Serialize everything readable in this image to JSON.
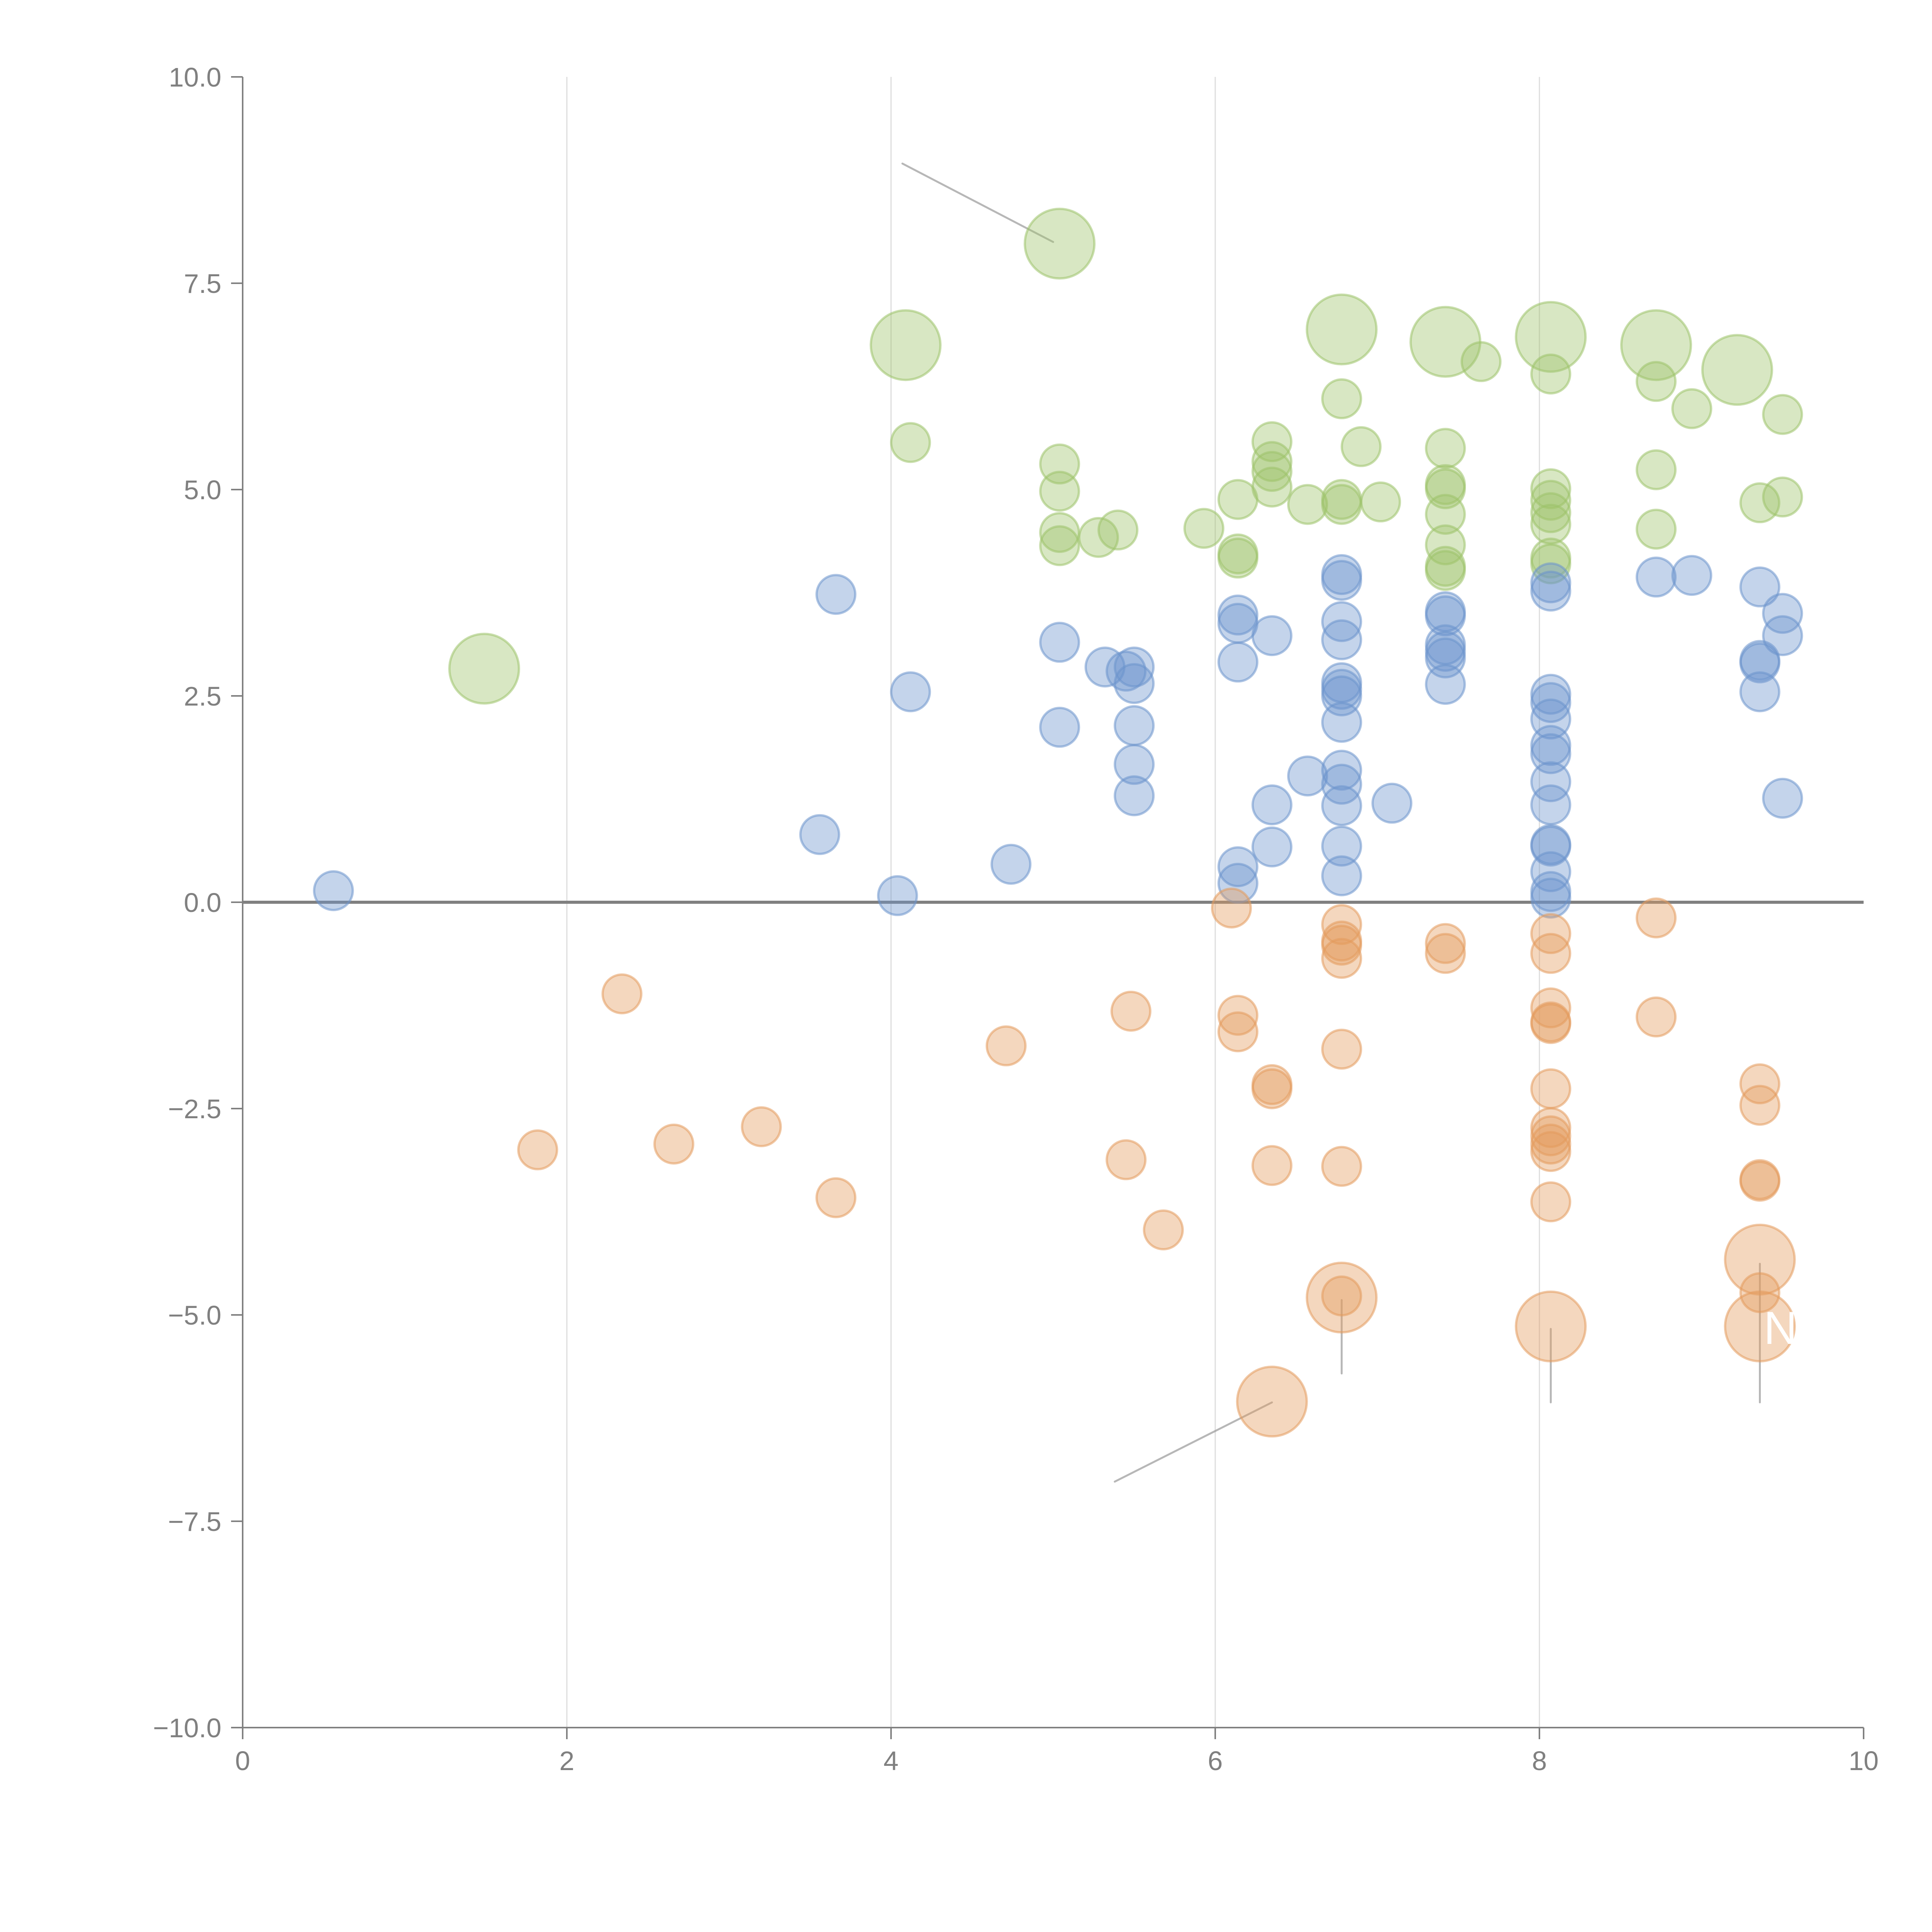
{
  "chart_data": {
    "type": "scatter",
    "subtype": "bubble",
    "title": "",
    "xlabel": "",
    "ylabel": "",
    "xlim": [
      0,
      10
    ],
    "ylim": [
      -10,
      10
    ],
    "x_ticks": [
      0,
      2,
      4,
      6,
      8,
      10
    ],
    "x_tick_labels": [
      "0",
      "2",
      "4",
      "6",
      "8",
      "10"
    ],
    "y_ticks": [
      10,
      7.5,
      5,
      2.5,
      0,
      -2.5,
      -5,
      -7.5,
      -10
    ],
    "y_tick_labels": [
      "10.0",
      "7.5",
      "5.0",
      "2.5",
      "0.0",
      "−2.5",
      "−5.0",
      "−7.5",
      "−10.0"
    ],
    "grid": "vertical",
    "zero_line": true,
    "legend": "none",
    "series": [
      {
        "name": "green",
        "color": "#9dc26a",
        "points": [
          {
            "x": 4.12,
            "y": 5.57,
            "s": 1
          },
          {
            "x": 5.04,
            "y": 5.31,
            "s": 1
          },
          {
            "x": 5.04,
            "y": 4.98,
            "s": 1
          },
          {
            "x": 5.04,
            "y": 4.48,
            "s": 1
          },
          {
            "x": 5.04,
            "y": 4.32,
            "s": 1
          },
          {
            "x": 5.28,
            "y": 4.42,
            "s": 1
          },
          {
            "x": 5.4,
            "y": 4.51,
            "s": 1
          },
          {
            "x": 5.93,
            "y": 4.53,
            "s": 1
          },
          {
            "x": 6.14,
            "y": 4.88,
            "s": 1
          },
          {
            "x": 6.14,
            "y": 4.22,
            "s": 1
          },
          {
            "x": 6.14,
            "y": 4.17,
            "s": 1
          },
          {
            "x": 6.35,
            "y": 5.58,
            "s": 1
          },
          {
            "x": 6.35,
            "y": 5.34,
            "s": 1
          },
          {
            "x": 6.35,
            "y": 5.22,
            "s": 1
          },
          {
            "x": 6.35,
            "y": 5.03,
            "s": 1
          },
          {
            "x": 6.57,
            "y": 4.82,
            "s": 1
          },
          {
            "x": 6.78,
            "y": 6.1,
            "s": 1
          },
          {
            "x": 6.78,
            "y": 4.88,
            "s": 1
          },
          {
            "x": 6.78,
            "y": 4.82,
            "s": 1
          },
          {
            "x": 6.9,
            "y": 5.52,
            "s": 1
          },
          {
            "x": 7.02,
            "y": 4.85,
            "s": 1
          },
          {
            "x": 7.42,
            "y": 5.5,
            "s": 1
          },
          {
            "x": 7.42,
            "y": 5.06,
            "s": 1
          },
          {
            "x": 7.42,
            "y": 5.01,
            "s": 1
          },
          {
            "x": 7.42,
            "y": 4.7,
            "s": 1
          },
          {
            "x": 7.42,
            "y": 4.33,
            "s": 1
          },
          {
            "x": 7.42,
            "y": 4.07,
            "s": 1
          },
          {
            "x": 7.42,
            "y": 4.02,
            "s": 1
          },
          {
            "x": 7.64,
            "y": 6.55,
            "s": 1
          },
          {
            "x": 8.07,
            "y": 6.4,
            "s": 1
          },
          {
            "x": 8.07,
            "y": 5.01,
            "s": 1
          },
          {
            "x": 8.07,
            "y": 4.87,
            "s": 1
          },
          {
            "x": 8.07,
            "y": 4.72,
            "s": 1
          },
          {
            "x": 8.07,
            "y": 4.58,
            "s": 1
          },
          {
            "x": 8.07,
            "y": 4.17,
            "s": 1
          },
          {
            "x": 8.07,
            "y": 4.1,
            "s": 1
          },
          {
            "x": 8.72,
            "y": 6.31,
            "s": 1
          },
          {
            "x": 8.72,
            "y": 5.24,
            "s": 1
          },
          {
            "x": 8.72,
            "y": 4.52,
            "s": 1
          },
          {
            "x": 8.94,
            "y": 5.98,
            "s": 1
          },
          {
            "x": 9.36,
            "y": 4.84,
            "s": 1
          },
          {
            "x": 9.5,
            "y": 5.91,
            "s": 1
          },
          {
            "x": 9.5,
            "y": 4.91,
            "s": 1
          },
          {
            "x": 1.49,
            "y": 2.83,
            "s": 3
          },
          {
            "x": 4.09,
            "y": 6.75,
            "s": 3
          },
          {
            "x": 5.04,
            "y": 7.98,
            "s": 3
          },
          {
            "x": 6.78,
            "y": 6.94,
            "s": 3
          },
          {
            "x": 7.42,
            "y": 6.79,
            "s": 3
          },
          {
            "x": 8.07,
            "y": 6.85,
            "s": 3
          },
          {
            "x": 8.72,
            "y": 6.75,
            "s": 3
          },
          {
            "x": 9.22,
            "y": 6.45,
            "s": 3
          }
        ]
      },
      {
        "name": "blue",
        "color": "#6b93cc",
        "points": [
          {
            "x": 0.56,
            "y": 0.14,
            "s": 1
          },
          {
            "x": 3.56,
            "y": 0.82,
            "s": 1
          },
          {
            "x": 3.66,
            "y": 3.73,
            "s": 1
          },
          {
            "x": 4.04,
            "y": 0.08,
            "s": 1
          },
          {
            "x": 4.12,
            "y": 2.55,
            "s": 1
          },
          {
            "x": 4.74,
            "y": 0.46,
            "s": 1
          },
          {
            "x": 5.04,
            "y": 3.15,
            "s": 1
          },
          {
            "x": 5.04,
            "y": 2.12,
            "s": 1
          },
          {
            "x": 5.32,
            "y": 2.85,
            "s": 1
          },
          {
            "x": 5.45,
            "y": 2.8,
            "s": 1
          },
          {
            "x": 5.5,
            "y": 2.85,
            "s": 1
          },
          {
            "x": 5.5,
            "y": 2.65,
            "s": 1
          },
          {
            "x": 5.5,
            "y": 2.14,
            "s": 1
          },
          {
            "x": 5.5,
            "y": 1.67,
            "s": 1
          },
          {
            "x": 5.5,
            "y": 1.29,
            "s": 1
          },
          {
            "x": 6.14,
            "y": 3.48,
            "s": 1
          },
          {
            "x": 6.14,
            "y": 3.38,
            "s": 1
          },
          {
            "x": 6.14,
            "y": 2.91,
            "s": 1
          },
          {
            "x": 6.14,
            "y": 0.43,
            "s": 1
          },
          {
            "x": 6.14,
            "y": 0.23,
            "s": 1
          },
          {
            "x": 6.35,
            "y": 3.23,
            "s": 1
          },
          {
            "x": 6.35,
            "y": 1.18,
            "s": 1
          },
          {
            "x": 6.35,
            "y": 0.67,
            "s": 1
          },
          {
            "x": 6.57,
            "y": 1.53,
            "s": 1
          },
          {
            "x": 6.78,
            "y": 3.97,
            "s": 1
          },
          {
            "x": 6.78,
            "y": 3.9,
            "s": 1
          },
          {
            "x": 6.78,
            "y": 3.4,
            "s": 1
          },
          {
            "x": 6.78,
            "y": 3.18,
            "s": 1
          },
          {
            "x": 6.78,
            "y": 2.66,
            "s": 1
          },
          {
            "x": 6.78,
            "y": 2.58,
            "s": 1
          },
          {
            "x": 6.78,
            "y": 2.5,
            "s": 1
          },
          {
            "x": 6.78,
            "y": 2.18,
            "s": 1
          },
          {
            "x": 6.78,
            "y": 1.6,
            "s": 1
          },
          {
            "x": 6.78,
            "y": 1.43,
            "s": 1
          },
          {
            "x": 6.78,
            "y": 1.17,
            "s": 1
          },
          {
            "x": 6.78,
            "y": 0.68,
            "s": 1
          },
          {
            "x": 6.78,
            "y": 0.32,
            "s": 1
          },
          {
            "x": 7.09,
            "y": 1.2,
            "s": 1
          },
          {
            "x": 7.42,
            "y": 3.52,
            "s": 1
          },
          {
            "x": 7.42,
            "y": 3.47,
            "s": 1
          },
          {
            "x": 7.42,
            "y": 3.12,
            "s": 1
          },
          {
            "x": 7.42,
            "y": 3.04,
            "s": 1
          },
          {
            "x": 7.42,
            "y": 2.96,
            "s": 1
          },
          {
            "x": 7.42,
            "y": 2.64,
            "s": 1
          },
          {
            "x": 8.07,
            "y": 3.87,
            "s": 1
          },
          {
            "x": 8.07,
            "y": 3.77,
            "s": 1
          },
          {
            "x": 8.07,
            "y": 2.52,
            "s": 1
          },
          {
            "x": 8.07,
            "y": 2.42,
            "s": 1
          },
          {
            "x": 8.07,
            "y": 2.22,
            "s": 1
          },
          {
            "x": 8.07,
            "y": 1.9,
            "s": 1
          },
          {
            "x": 8.07,
            "y": 1.8,
            "s": 1
          },
          {
            "x": 8.07,
            "y": 1.46,
            "s": 1
          },
          {
            "x": 8.07,
            "y": 1.18,
            "s": 1
          },
          {
            "x": 8.07,
            "y": 0.7,
            "s": 1
          },
          {
            "x": 8.07,
            "y": 0.68,
            "s": 1
          },
          {
            "x": 8.07,
            "y": 0.37,
            "s": 1
          },
          {
            "x": 8.07,
            "y": 0.13,
            "s": 1
          },
          {
            "x": 8.07,
            "y": 0.05,
            "s": 1
          },
          {
            "x": 8.72,
            "y": 3.94,
            "s": 1
          },
          {
            "x": 8.94,
            "y": 3.96,
            "s": 1
          },
          {
            "x": 9.36,
            "y": 3.82,
            "s": 1
          },
          {
            "x": 9.36,
            "y": 2.93,
            "s": 1
          },
          {
            "x": 9.36,
            "y": 2.9,
            "s": 1
          },
          {
            "x": 9.36,
            "y": 2.55,
            "s": 1
          },
          {
            "x": 9.5,
            "y": 3.5,
            "s": 1
          },
          {
            "x": 9.5,
            "y": 3.23,
            "s": 1
          },
          {
            "x": 9.5,
            "y": 1.26,
            "s": 1
          }
        ]
      },
      {
        "name": "orange",
        "color": "#e39a5c",
        "points": [
          {
            "x": 1.82,
            "y": -3.0,
            "s": 1
          },
          {
            "x": 2.34,
            "y": -1.11,
            "s": 1
          },
          {
            "x": 2.66,
            "y": -2.93,
            "s": 1
          },
          {
            "x": 3.2,
            "y": -2.72,
            "s": 1
          },
          {
            "x": 3.66,
            "y": -3.58,
            "s": 1
          },
          {
            "x": 4.71,
            "y": -1.74,
            "s": 1
          },
          {
            "x": 5.45,
            "y": -3.12,
            "s": 1
          },
          {
            "x": 5.48,
            "y": -1.32,
            "s": 1
          },
          {
            "x": 5.68,
            "y": -3.97,
            "s": 1
          },
          {
            "x": 6.1,
            "y": -0.07,
            "s": 1
          },
          {
            "x": 6.14,
            "y": -1.37,
            "s": 1
          },
          {
            "x": 6.14,
            "y": -1.57,
            "s": 1
          },
          {
            "x": 6.35,
            "y": -2.21,
            "s": 1
          },
          {
            "x": 6.35,
            "y": -2.26,
            "s": 1
          },
          {
            "x": 6.35,
            "y": -3.19,
            "s": 1
          },
          {
            "x": 6.78,
            "y": -0.27,
            "s": 1
          },
          {
            "x": 6.78,
            "y": -0.47,
            "s": 1
          },
          {
            "x": 6.78,
            "y": -0.52,
            "s": 1
          },
          {
            "x": 6.78,
            "y": -0.68,
            "s": 1
          },
          {
            "x": 6.78,
            "y": -1.78,
            "s": 1
          },
          {
            "x": 6.78,
            "y": -3.2,
            "s": 1
          },
          {
            "x": 6.78,
            "y": -4.77,
            "s": 1
          },
          {
            "x": 7.42,
            "y": -0.5,
            "s": 1
          },
          {
            "x": 7.42,
            "y": -0.62,
            "s": 1
          },
          {
            "x": 8.07,
            "y": -0.38,
            "s": 1
          },
          {
            "x": 8.07,
            "y": -0.62,
            "s": 1
          },
          {
            "x": 8.07,
            "y": -1.28,
            "s": 1
          },
          {
            "x": 8.07,
            "y": -1.45,
            "s": 1
          },
          {
            "x": 8.07,
            "y": -1.47,
            "s": 1
          },
          {
            "x": 8.07,
            "y": -2.26,
            "s": 1
          },
          {
            "x": 8.07,
            "y": -2.73,
            "s": 1
          },
          {
            "x": 8.07,
            "y": -2.83,
            "s": 1
          },
          {
            "x": 8.07,
            "y": -2.93,
            "s": 1
          },
          {
            "x": 8.07,
            "y": -3.02,
            "s": 1
          },
          {
            "x": 8.07,
            "y": -3.63,
            "s": 1
          },
          {
            "x": 8.72,
            "y": -0.19,
            "s": 1
          },
          {
            "x": 8.72,
            "y": -1.39,
            "s": 1
          },
          {
            "x": 9.36,
            "y": -2.2,
            "s": 1
          },
          {
            "x": 9.36,
            "y": -2.46,
            "s": 1
          },
          {
            "x": 9.36,
            "y": -3.36,
            "s": 1
          },
          {
            "x": 9.36,
            "y": -3.38,
            "s": 1
          },
          {
            "x": 9.36,
            "y": -4.73,
            "s": 1
          },
          {
            "x": 6.35,
            "y": -6.05,
            "s": 3
          },
          {
            "x": 6.78,
            "y": -4.79,
            "s": 3
          },
          {
            "x": 8.07,
            "y": -5.14,
            "s": 3
          },
          {
            "x": 9.36,
            "y": -4.33,
            "s": 3
          },
          {
            "x": 9.36,
            "y": -5.14,
            "s": 3
          }
        ]
      }
    ],
    "annotations": [
      {
        "text": "N",
        "x": 9.36,
        "y": -5.14,
        "color": "#ffffff"
      }
    ],
    "leader_lines": [
      {
        "from": [
          4.07,
          8.95
        ],
        "to": [
          5.0,
          8.0
        ]
      },
      {
        "from": [
          6.35,
          -6.06
        ],
        "to": [
          5.38,
          -7.02
        ]
      },
      {
        "from": [
          6.78,
          -4.82
        ],
        "to": [
          6.78,
          -5.71
        ]
      },
      {
        "from": [
          8.07,
          -5.17
        ],
        "to": [
          8.07,
          -6.06
        ]
      },
      {
        "from": [
          9.36,
          -4.38
        ],
        "to": [
          9.36,
          -6.06
        ]
      }
    ]
  }
}
